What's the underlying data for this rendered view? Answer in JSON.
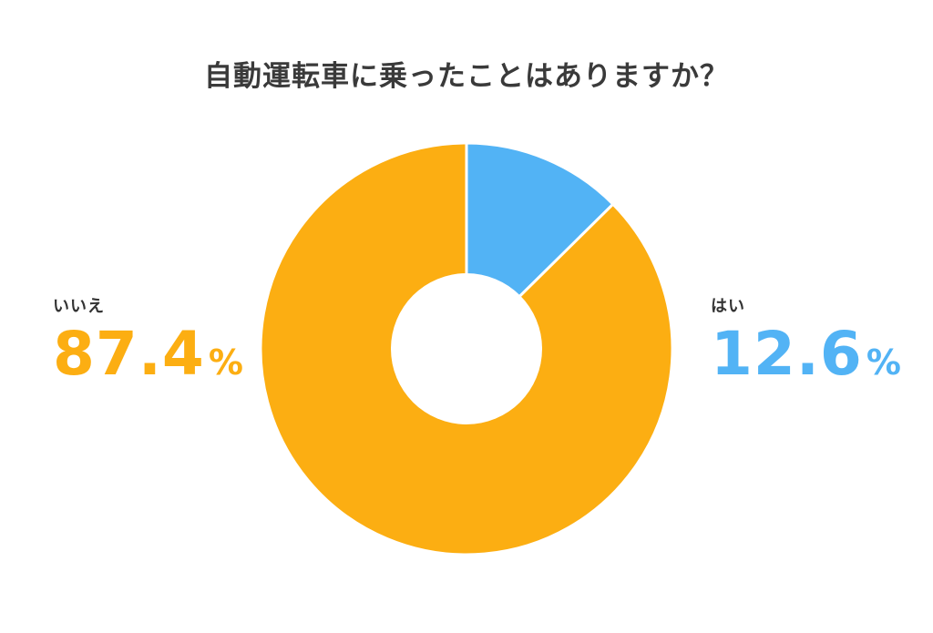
{
  "chart_data": {
    "type": "pie",
    "title": "自動運転車に乗ったことはありますか？",
    "slices": [
      {
        "label": "はい",
        "value": 12.6,
        "color": "#52b3f5"
      },
      {
        "label": "いいえ",
        "value": 87.4,
        "color": "#fcae12"
      }
    ],
    "donut": true,
    "unit": "%"
  },
  "legend": {
    "yes": {
      "label": "はい",
      "value": "12.6",
      "unit": "%"
    },
    "no": {
      "label": "いいえ",
      "value": "87.4",
      "unit": "%"
    }
  }
}
